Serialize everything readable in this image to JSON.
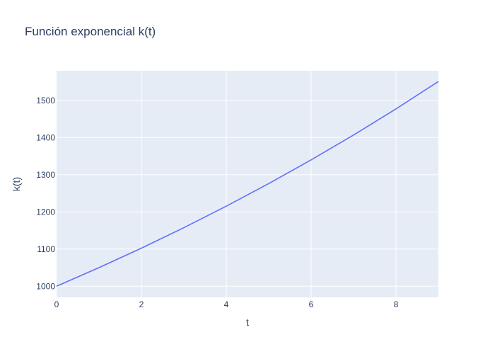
{
  "chart_data": {
    "type": "line",
    "title": "Función exponencial k(t)",
    "xlabel": "t",
    "ylabel": "k(t)",
    "xlim": [
      0,
      9
    ],
    "ylim": [
      970,
      1580
    ],
    "x_ticks": [
      0,
      2,
      4,
      6,
      8
    ],
    "y_ticks": [
      1000,
      1100,
      1200,
      1300,
      1400,
      1500
    ],
    "grid": true,
    "colors": {
      "plot_background": "#e5ecf6",
      "grid": "#ffffff",
      "line": "#636efa",
      "text": "#2a3f5f"
    },
    "series": [
      {
        "x": [
          0,
          1,
          2,
          3,
          4,
          5,
          6,
          7,
          8,
          9
        ],
        "y": [
          1000,
          1050,
          1102.5,
          1157.6,
          1215.5,
          1276.3,
          1340.1,
          1407.1,
          1477.5,
          1551.3
        ]
      }
    ]
  }
}
